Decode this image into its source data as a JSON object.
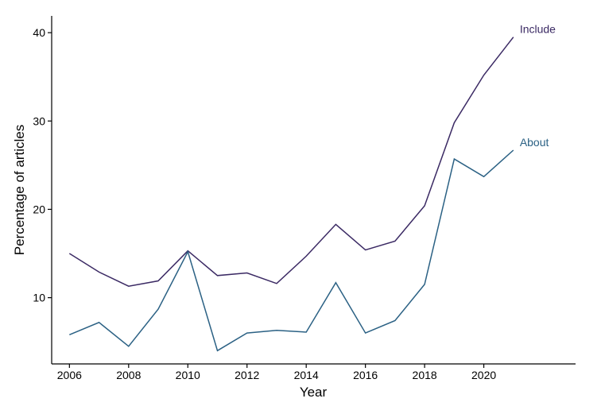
{
  "chart_data": {
    "type": "line",
    "xlabel": "Year",
    "ylabel": "Percentage of articles",
    "x": [
      2006,
      2007,
      2008,
      2009,
      2010,
      2011,
      2012,
      2013,
      2014,
      2015,
      2016,
      2017,
      2018,
      2019,
      2020,
      2021
    ],
    "xticks": [
      2006,
      2008,
      2010,
      2012,
      2014,
      2016,
      2018,
      2020
    ],
    "yticks": [
      10,
      20,
      30,
      40
    ],
    "xlim": [
      2005.4,
      2023.1
    ],
    "ylim": [
      2.5,
      41.9
    ],
    "grid": false,
    "legend": "none",
    "series": [
      {
        "name": "Include",
        "color": "#3b2a64",
        "values": [
          15.0,
          12.9,
          11.3,
          11.9,
          15.3,
          12.5,
          12.8,
          11.6,
          14.7,
          18.3,
          15.4,
          16.4,
          20.4,
          29.8,
          35.2,
          39.5
        ]
      },
      {
        "name": "About",
        "color": "#2b6184",
        "values": [
          5.8,
          7.2,
          4.5,
          8.7,
          15.2,
          4.0,
          6.0,
          6.3,
          6.1,
          11.7,
          6.0,
          7.4,
          11.5,
          25.7,
          23.7,
          26.7
        ]
      }
    ]
  }
}
